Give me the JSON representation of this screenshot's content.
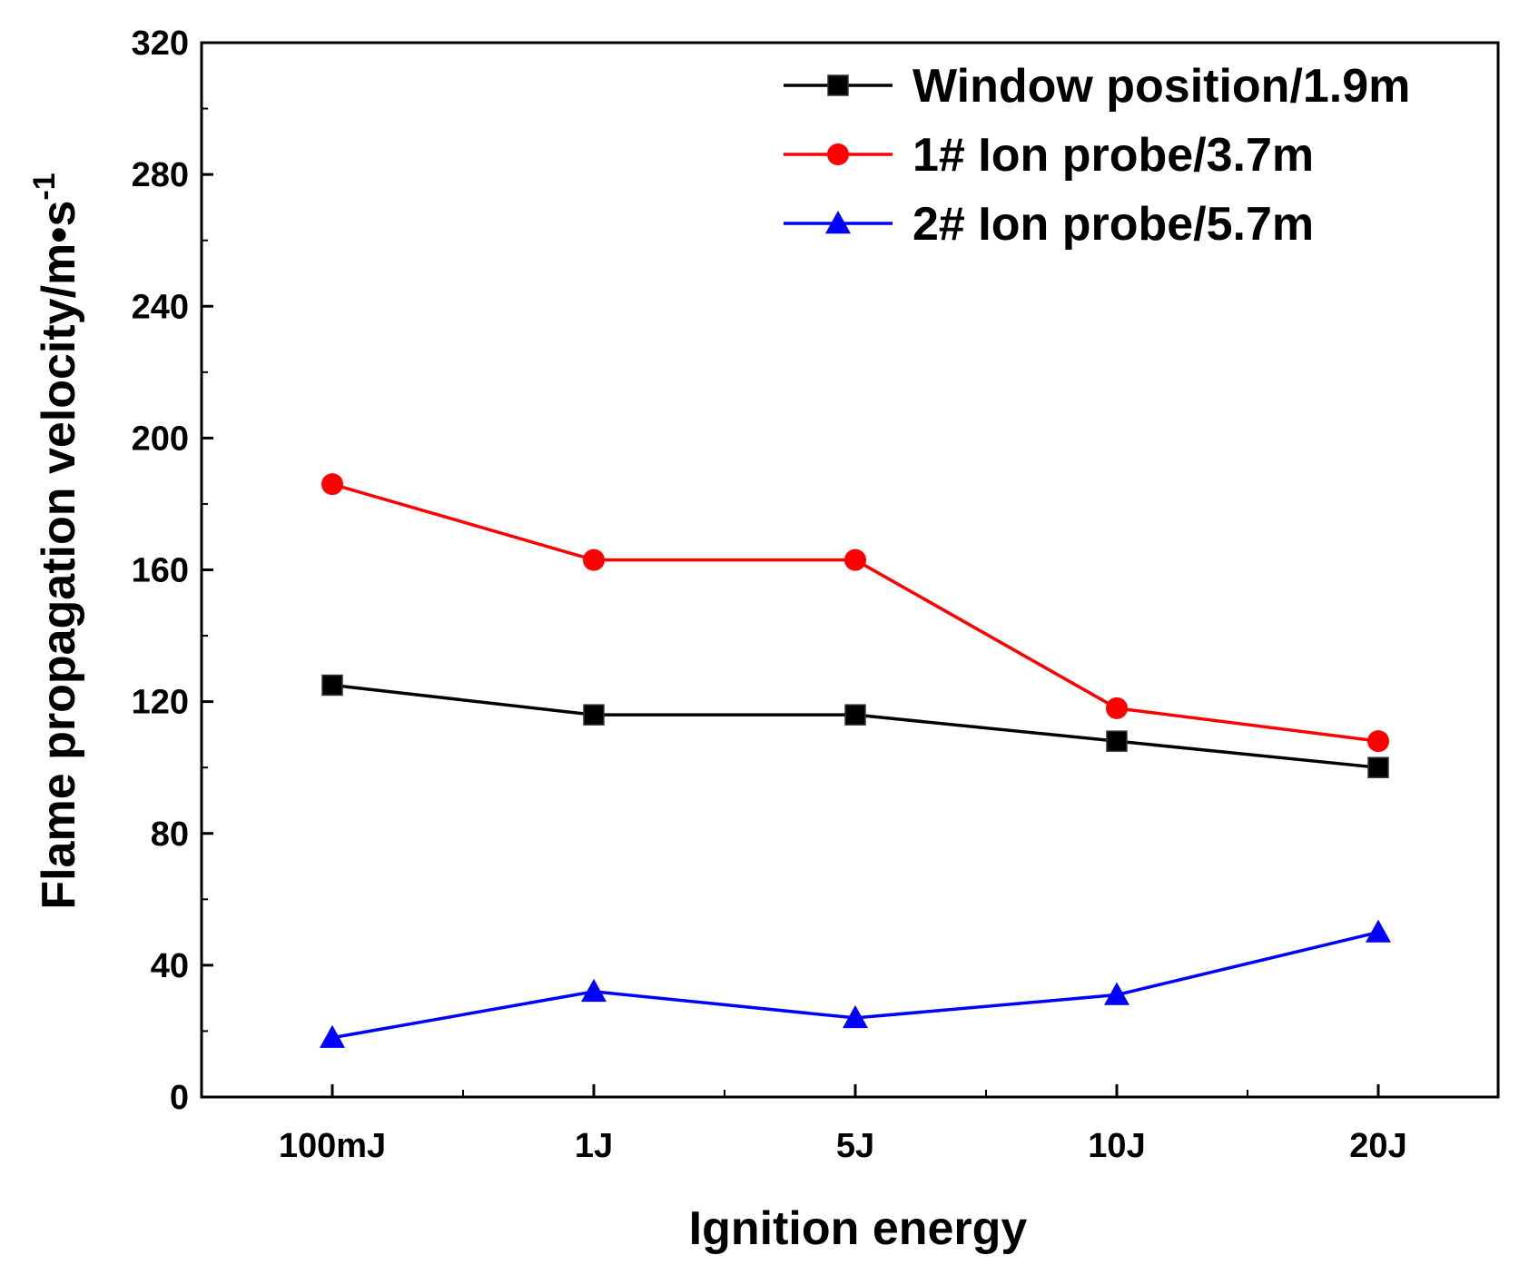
{
  "chart_data": {
    "type": "line",
    "categories": [
      "100mJ",
      "1J",
      "5J",
      "10J",
      "20J"
    ],
    "series": [
      {
        "name": "Window position/1.9m",
        "values": [
          125,
          116,
          116,
          108,
          100
        ],
        "color": "#000000",
        "marker": "square"
      },
      {
        "name": "1# Ion probe/3.7m",
        "values": [
          186,
          163,
          163,
          118,
          108
        ],
        "color": "#ff0000",
        "marker": "circle"
      },
      {
        "name": "2# Ion probe/5.7m",
        "values": [
          18,
          32,
          24,
          31,
          50
        ],
        "color": "#0000ff",
        "marker": "triangle"
      }
    ],
    "title": "",
    "xlabel": "Ignition energy",
    "ylabel": "Flame propagation velocity/m•s",
    "ylabel_superscript": "-1",
    "ylim": [
      0,
      320
    ],
    "yticks": [
      "0",
      "40",
      "80",
      "120",
      "160",
      "200",
      "240",
      "280",
      "320"
    ],
    "grid": false,
    "legend_position": "top-right"
  }
}
